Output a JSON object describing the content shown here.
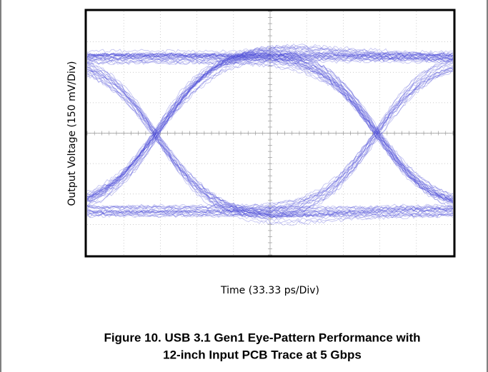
{
  "figure": {
    "y_axis_label": "Output Voltage (150 mV/Div)",
    "x_axis_label": "Time (33.33 ps/Div)",
    "caption": [
      "Figure 10. USB 3.1 Gen1 Eye-Pattern Performance with",
      "12-inch Input PCB Trace at 5 Gbps"
    ]
  }
}
